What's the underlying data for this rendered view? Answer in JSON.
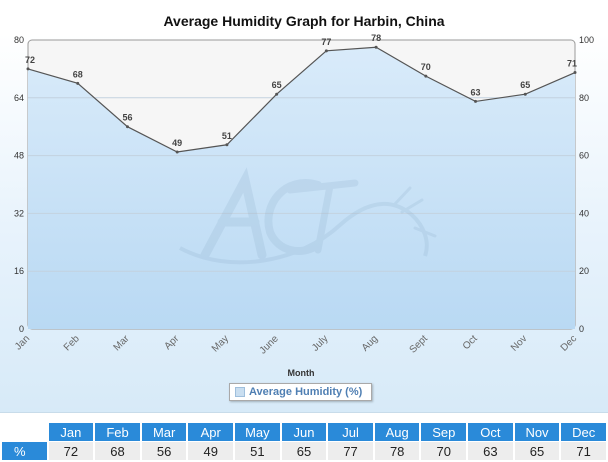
{
  "chart_data": {
    "type": "area",
    "title": "Average Humidity Graph for Harbin, China",
    "xlabel": "Month",
    "ylabel": "",
    "categories": [
      "Jan",
      "Feb",
      "Mar",
      "Apr",
      "May",
      "June",
      "July",
      "Aug",
      "Sept",
      "Oct",
      "Nov",
      "Dec"
    ],
    "series": [
      {
        "name": "Average Humidity (%)",
        "values": [
          72,
          68,
          56,
          49,
          51,
          65,
          77,
          78,
          70,
          63,
          65,
          71
        ]
      }
    ],
    "ylim_left": [
      0,
      80
    ],
    "yticks_left": [
      "0",
      "16",
      "32",
      "48",
      "64",
      "80"
    ],
    "ylim_right": [
      0,
      100
    ],
    "yticks_right": [
      "0",
      "20",
      "40",
      "60",
      "80",
      "100"
    ],
    "grid": true,
    "legend_position": "bottom",
    "colors": {
      "area_fill": "#c9e1f6",
      "line": "#555555",
      "table_header": "#2a8ad9"
    }
  },
  "legend": {
    "label": "Average Humidity (%)"
  },
  "table": {
    "row_label": "%",
    "headers": [
      "Jan",
      "Feb",
      "Mar",
      "Apr",
      "May",
      "Jun",
      "Jul",
      "Aug",
      "Sep",
      "Oct",
      "Nov",
      "Dec"
    ],
    "values": [
      "72",
      "68",
      "56",
      "49",
      "51",
      "65",
      "77",
      "78",
      "70",
      "63",
      "65",
      "71"
    ]
  }
}
